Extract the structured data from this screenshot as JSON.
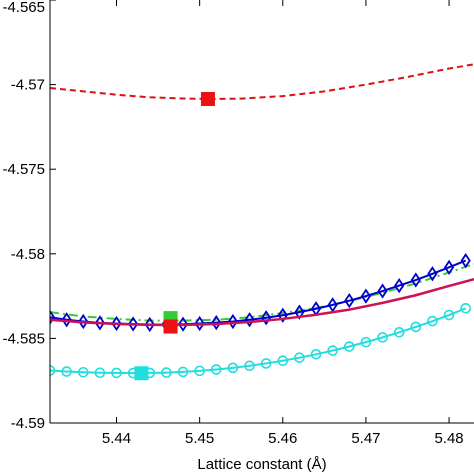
{
  "chart_data": {
    "type": "line",
    "title": "",
    "xlabel": "Lattice constant (Å)",
    "ylabel": "",
    "xlim": [
      5.432,
      5.483
    ],
    "ylim": [
      -4.59,
      -4.565
    ],
    "xticks": [
      5.44,
      5.45,
      5.46,
      5.47,
      5.48
    ],
    "xtick_labels": [
      "5.44",
      "5.45",
      "5.46",
      "5.47",
      "5.48"
    ],
    "yticks": [
      -4.565,
      -4.57,
      -4.575,
      -4.58,
      -4.585,
      -4.59
    ],
    "ytick_labels": [
      "-4.565",
      "-4.57",
      "-4.575",
      "-4.58",
      "-4.585",
      "-4.59"
    ],
    "grid": false,
    "series": [
      {
        "color": "#dd1111",
        "style": "dashed",
        "marker": "none",
        "x": [
          5.432,
          5.436,
          5.44,
          5.444,
          5.448,
          5.451,
          5.455,
          5.46,
          5.465,
          5.47,
          5.475,
          5.48,
          5.483
        ],
        "y": [
          -4.5702,
          -4.5704,
          -4.5706,
          -4.57075,
          -4.57082,
          -4.57085,
          -4.57083,
          -4.57068,
          -4.5704,
          -4.57,
          -4.56955,
          -4.56905,
          -4.5688
        ],
        "min_marker": {
          "x": 5.451,
          "y": -4.57085,
          "shape": "square",
          "color": "#ee1111"
        }
      },
      {
        "color": "#33cc33",
        "style": "dashdot",
        "marker": "none",
        "x": [
          5.432,
          5.436,
          5.44,
          5.444,
          5.448,
          5.452,
          5.456,
          5.46,
          5.464,
          5.468,
          5.472,
          5.476,
          5.48,
          5.483
        ],
        "y": [
          -4.58345,
          -4.5837,
          -4.58385,
          -4.58395,
          -4.58395,
          -4.5839,
          -4.58375,
          -4.5835,
          -4.5832,
          -4.5828,
          -4.5823,
          -4.58175,
          -4.5811,
          -4.5806
        ],
        "min_marker": {
          "x": 5.4465,
          "y": -4.5838,
          "shape": "square",
          "color": "#33cc33"
        }
      },
      {
        "color": "#0000cc",
        "style": "solid",
        "marker": "diamond",
        "x": [
          5.432,
          5.434,
          5.436,
          5.438,
          5.44,
          5.442,
          5.444,
          5.446,
          5.448,
          5.45,
          5.452,
          5.454,
          5.456,
          5.458,
          5.46,
          5.462,
          5.464,
          5.466,
          5.468,
          5.47,
          5.472,
          5.474,
          5.476,
          5.478,
          5.48,
          5.482
        ],
        "y": [
          -4.58375,
          -4.5839,
          -4.584,
          -4.58408,
          -4.58412,
          -4.58415,
          -4.58418,
          -4.58418,
          -4.58416,
          -4.58412,
          -4.58407,
          -4.584,
          -4.5839,
          -4.58378,
          -4.58363,
          -4.58345,
          -4.58325,
          -4.58302,
          -4.58277,
          -4.5825,
          -4.5822,
          -4.58188,
          -4.58155,
          -4.58118,
          -4.5808,
          -4.5804
        ]
      },
      {
        "color": "#cc1155",
        "style": "solid",
        "marker": "none",
        "x": [
          5.432,
          5.436,
          5.44,
          5.444,
          5.448,
          5.452,
          5.456,
          5.46,
          5.464,
          5.468,
          5.472,
          5.476,
          5.48,
          5.483
        ],
        "y": [
          -4.5839,
          -4.58405,
          -4.58415,
          -4.5842,
          -4.5842,
          -4.58415,
          -4.58403,
          -4.58385,
          -4.5836,
          -4.5833,
          -4.5829,
          -4.58245,
          -4.5819,
          -4.5815
        ],
        "min_marker": {
          "x": 5.4465,
          "y": -4.5843,
          "shape": "square",
          "color": "#ee1111"
        }
      },
      {
        "color": "#22dddd",
        "style": "solid",
        "marker": "circle",
        "x": [
          5.432,
          5.434,
          5.436,
          5.438,
          5.44,
          5.442,
          5.444,
          5.446,
          5.448,
          5.45,
          5.452,
          5.454,
          5.456,
          5.458,
          5.46,
          5.462,
          5.464,
          5.466,
          5.468,
          5.47,
          5.472,
          5.474,
          5.476,
          5.478,
          5.48,
          5.482
        ],
        "y": [
          -4.5869,
          -4.58696,
          -4.587,
          -4.58703,
          -4.58704,
          -4.58705,
          -4.58704,
          -4.58702,
          -4.58698,
          -4.58692,
          -4.58684,
          -4.58674,
          -4.58662,
          -4.58648,
          -4.58632,
          -4.58614,
          -4.58594,
          -4.58572,
          -4.58548,
          -4.58522,
          -4.58494,
          -4.58464,
          -4.58432,
          -4.58398,
          -4.58362,
          -4.58322
        ],
        "min_marker": {
          "x": 5.443,
          "y": -4.58706,
          "shape": "square",
          "color": "#22dddd"
        }
      }
    ]
  }
}
